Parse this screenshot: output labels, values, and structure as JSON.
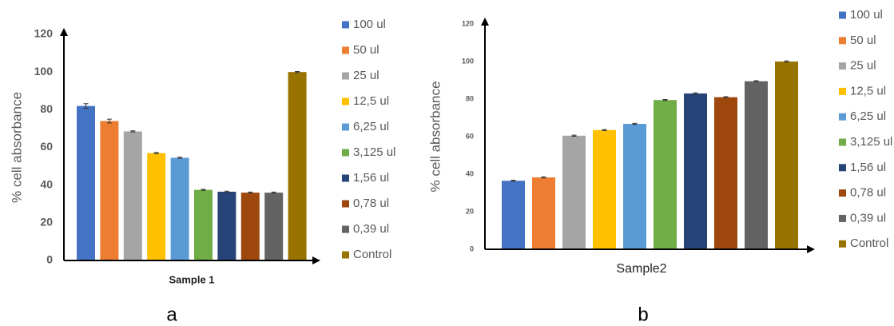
{
  "chart_data": [
    {
      "type": "bar",
      "panel_label": "a",
      "ylabel": "% cell absorbance",
      "categories": [
        "Sample 1"
      ],
      "ylim": [
        0,
        120
      ],
      "yticks": [
        0,
        20,
        40,
        60,
        80,
        100,
        120
      ],
      "grid": false,
      "legend": "right",
      "series": [
        {
          "name": "100 ul",
          "color": "#4472c4",
          "values": [
            82
          ],
          "errors": [
            1.2
          ]
        },
        {
          "name": "50 ul",
          "color": "#ed7d31",
          "values": [
            74
          ],
          "errors": [
            1
          ]
        },
        {
          "name": "25 ul",
          "color": "#a5a5a5",
          "values": [
            68.5
          ],
          "errors": [
            0.3
          ]
        },
        {
          "name": "12,5 ul",
          "color": "#ffc000",
          "values": [
            57
          ],
          "errors": [
            0.3
          ]
        },
        {
          "name": "6,25 ul",
          "color": "#5b9bd5",
          "values": [
            54.5
          ],
          "errors": [
            0.3
          ]
        },
        {
          "name": "3,125 ul",
          "color": "#70ad47",
          "values": [
            37.5
          ],
          "errors": [
            0.3
          ]
        },
        {
          "name": "1,56 ul",
          "color": "#264478",
          "values": [
            36.5
          ],
          "errors": [
            0.3
          ]
        },
        {
          "name": "0,78 ul",
          "color": "#9e480e",
          "values": [
            36
          ],
          "errors": [
            0.3
          ]
        },
        {
          "name": "0,39 ul",
          "color": "#636363",
          "values": [
            36
          ],
          "errors": [
            0.3
          ]
        },
        {
          "name": "Control",
          "color": "#997300",
          "values": [
            100
          ],
          "errors": [
            0.3
          ]
        }
      ]
    },
    {
      "type": "bar",
      "panel_label": "b",
      "ylabel": "% cell absorbance",
      "categories": [
        "Sample2"
      ],
      "ylim": [
        0,
        120
      ],
      "yticks": [
        0,
        20,
        40,
        60,
        80,
        100,
        120
      ],
      "grid": false,
      "legend": "right",
      "series": [
        {
          "name": "100 ul",
          "color": "#4472c4",
          "values": [
            36.5
          ],
          "errors": [
            0.3
          ]
        },
        {
          "name": "50 ul",
          "color": "#ed7d31",
          "values": [
            38.3
          ],
          "errors": [
            0.3
          ]
        },
        {
          "name": "25 ul",
          "color": "#a5a5a5",
          "values": [
            60.5
          ],
          "errors": [
            0.3
          ]
        },
        {
          "name": "12,5 ul",
          "color": "#ffc000",
          "values": [
            63.5
          ],
          "errors": [
            0.3
          ]
        },
        {
          "name": "6,25 ul",
          "color": "#5b9bd5",
          "values": [
            66.8
          ],
          "errors": [
            0.3
          ]
        },
        {
          "name": "3,125 ul",
          "color": "#70ad47",
          "values": [
            79.5
          ],
          "errors": [
            0.3
          ]
        },
        {
          "name": "1,56 ul",
          "color": "#264478",
          "values": [
            83
          ],
          "errors": [
            0.3
          ]
        },
        {
          "name": "0,78 ul",
          "color": "#9e480e",
          "values": [
            81
          ],
          "errors": [
            0.3
          ]
        },
        {
          "name": "0,39 ul",
          "color": "#636363",
          "values": [
            89.5
          ],
          "errors": [
            0.3
          ]
        },
        {
          "name": "Control",
          "color": "#997300",
          "values": [
            100
          ],
          "errors": [
            0.3
          ]
        }
      ]
    }
  ]
}
